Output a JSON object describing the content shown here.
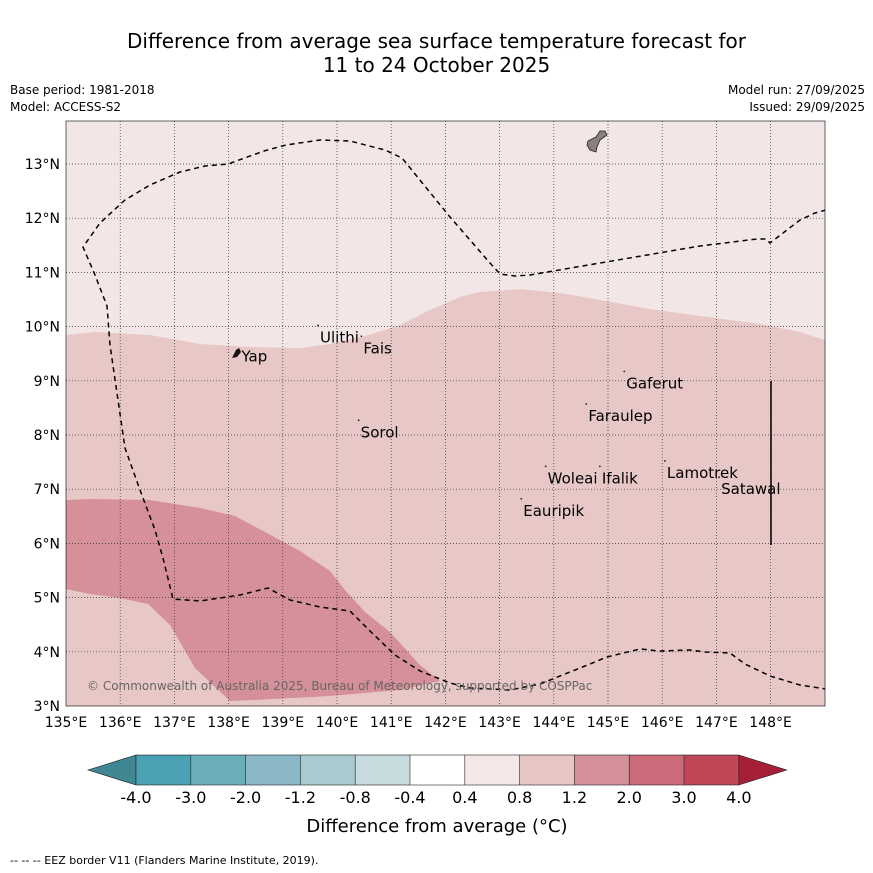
{
  "title": {
    "line1": "Difference from average sea surface temperature forecast for",
    "line2": "11 to 24 October 2025"
  },
  "meta": {
    "base_period": "Base period: 1981-2018",
    "model": "Model: ACCESS-S2",
    "model_run": "Model run: 27/09/2025",
    "issued": "Issued: 29/09/2025"
  },
  "map": {
    "lon_range": [
      135,
      149
    ],
    "lat_range": [
      3,
      13.8
    ],
    "x_ticks": [
      "135°E",
      "136°E",
      "137°E",
      "138°E",
      "139°E",
      "140°E",
      "141°E",
      "142°E",
      "143°E",
      "144°E",
      "145°E",
      "146°E",
      "147°E",
      "148°E"
    ],
    "y_ticks": [
      "3°N",
      "4°N",
      "5°N",
      "6°N",
      "7°N",
      "8°N",
      "9°N",
      "10°N",
      "11°N",
      "12°N",
      "13°N"
    ],
    "places": [
      {
        "name": "Yap",
        "lon": 138.2,
        "lat": 9.45
      },
      {
        "name": "Ulithi",
        "lon": 139.65,
        "lat": 9.8
      },
      {
        "name": "Fais",
        "lon": 140.45,
        "lat": 9.6
      },
      {
        "name": "Gaferut",
        "lon": 145.3,
        "lat": 8.95
      },
      {
        "name": "Faraulep",
        "lon": 144.6,
        "lat": 8.35
      },
      {
        "name": "Sorol",
        "lon": 140.4,
        "lat": 8.05
      },
      {
        "name": "Lamotrek",
        "lon": 146.05,
        "lat": 7.3
      },
      {
        "name": "Woleai",
        "lon": 143.85,
        "lat": 7.2
      },
      {
        "name": "Ifalik",
        "lon": 144.85,
        "lat": 7.2
      },
      {
        "name": "Satawal",
        "lon": 147.05,
        "lat": 7.0
      },
      {
        "name": "Eauripik",
        "lon": 143.4,
        "lat": 6.6
      }
    ],
    "copyright": "© Commonwealth of Australia 2025, Bureau of Meteorology, supported by COSPPac",
    "colors": {
      "bin_04_08": "#f3e6e6",
      "bin_08_12": "#e8c8c6",
      "bin_12_20": "#d5909a",
      "land": "#8a7e7e"
    }
  },
  "colorbar": {
    "labels": [
      "-4.0",
      "-3.0",
      "-2.0",
      "-1.2",
      "-0.8",
      "-0.4",
      "0.4",
      "0.8",
      "1.2",
      "2.0",
      "3.0",
      "4.0"
    ],
    "colors": [
      "#3f8792",
      "#49a1b3",
      "#6aaebc",
      "#8ab8c6",
      "#a9cad0",
      "#c7dadd",
      "#ffffff",
      "#f4e7e7",
      "#e8c6c4",
      "#d5909a",
      "#cb6b79",
      "#bf4758",
      "#a61f38"
    ],
    "title": "Difference from average (°C)"
  },
  "footnote": "-- -- -- EEZ border V11 (Flanders Marine Institute, 2019)."
}
